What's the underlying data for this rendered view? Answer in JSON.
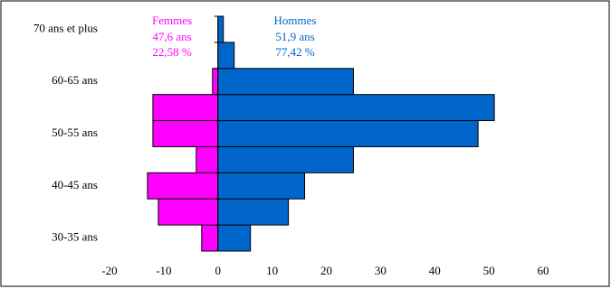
{
  "chart_data": {
    "type": "pyramid",
    "categories": [
      "30-35 ans",
      null,
      "40-45 ans",
      null,
      "50-55 ans",
      null,
      "60-65 ans",
      null,
      "70 ans et plus"
    ],
    "series": [
      {
        "name": "Femmes",
        "color": "#ff00ff",
        "values": [
          -3,
          -11,
          -13,
          -4,
          -12,
          -12,
          -1,
          0,
          0
        ],
        "annotations": [
          "47,6 ans",
          "22,58 %"
        ]
      },
      {
        "name": "Hommes",
        "color": "#0066cc",
        "values": [
          6,
          13,
          16,
          25,
          48,
          51,
          25,
          3,
          1
        ],
        "annotations": [
          "51,9 ans",
          "77,42 %"
        ]
      }
    ],
    "xlim": [
      -20,
      60
    ],
    "xticks": [
      -20,
      -10,
      0,
      10,
      20,
      30,
      40,
      50,
      60
    ]
  }
}
